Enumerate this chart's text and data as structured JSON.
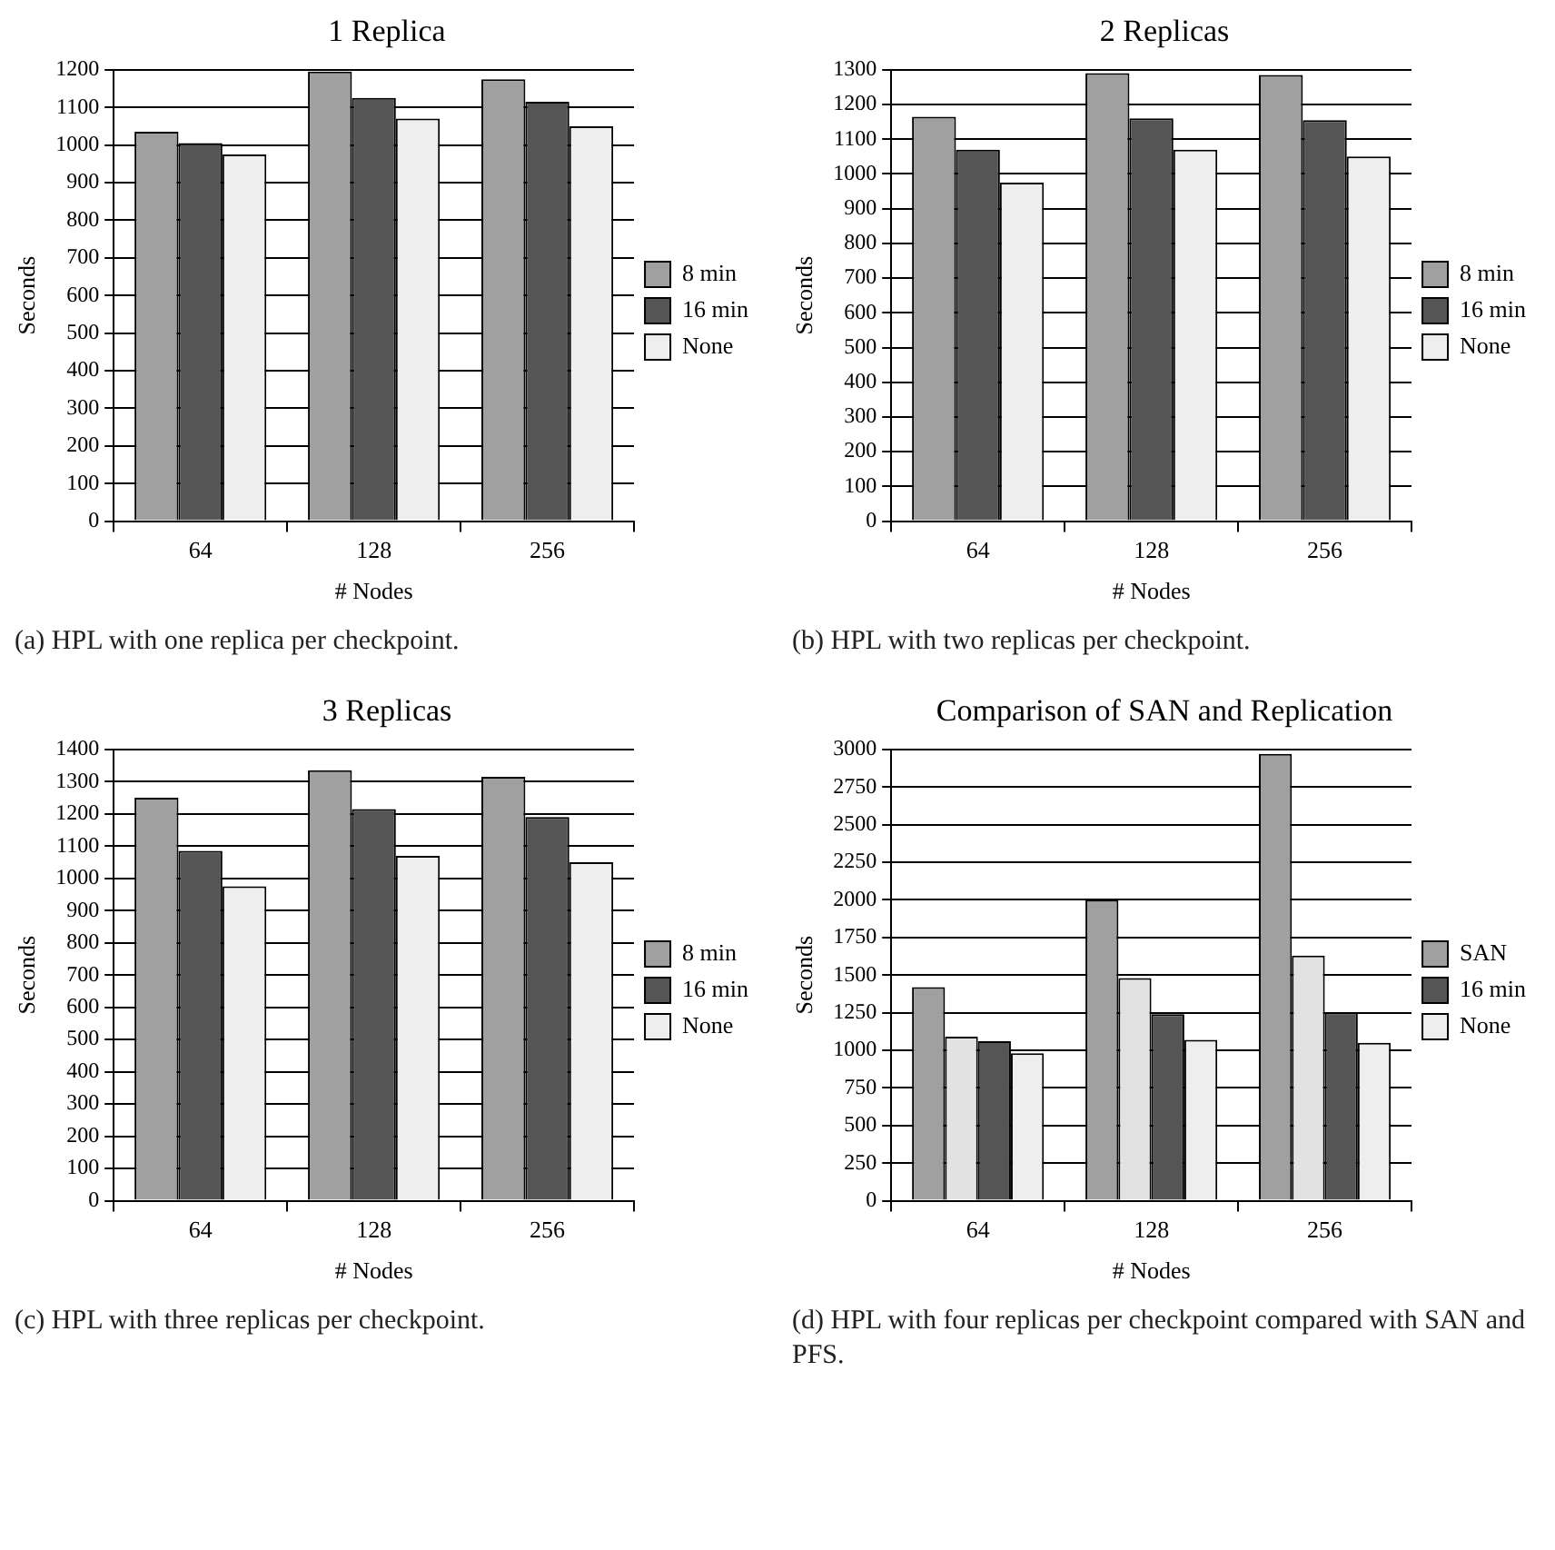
{
  "chart_data": [
    {
      "type": "bar",
      "title": "1 Replica",
      "xlabel": "# Nodes",
      "ylabel": "Seconds",
      "categories": [
        "64",
        "128",
        "256"
      ],
      "series": [
        {
          "name": "8 min",
          "color": "#a0a0a0",
          "values": [
            1035,
            1195,
            1175
          ]
        },
        {
          "name": "16 min",
          "color": "#555555",
          "values": [
            1005,
            1125,
            1115
          ]
        },
        {
          "name": "None",
          "color": "#eeeeee",
          "values": [
            975,
            1070,
            1050
          ]
        }
      ],
      "ylim": [
        0,
        1200
      ],
      "yticks": [
        0,
        100,
        200,
        300,
        400,
        500,
        600,
        700,
        800,
        900,
        1000,
        1100,
        1200
      ],
      "grid": "y",
      "legend": "right",
      "annotations": [
        "(a) HPL with one replica per checkpoint."
      ]
    },
    {
      "type": "bar",
      "title": "2 Replicas",
      "xlabel": "# Nodes",
      "ylabel": "Seconds",
      "categories": [
        "64",
        "128",
        "256"
      ],
      "series": [
        {
          "name": "8 min",
          "color": "#a0a0a0",
          "values": [
            1165,
            1290,
            1285
          ]
        },
        {
          "name": "16 min",
          "color": "#555555",
          "values": [
            1070,
            1160,
            1155
          ]
        },
        {
          "name": "None",
          "color": "#eeeeee",
          "values": [
            975,
            1070,
            1050
          ]
        }
      ],
      "ylim": [
        0,
        1300
      ],
      "yticks": [
        0,
        100,
        200,
        300,
        400,
        500,
        600,
        700,
        800,
        900,
        1000,
        1100,
        1200,
        1300
      ],
      "grid": "y",
      "legend": "right",
      "annotations": [
        "(b) HPL with two replicas per checkpoint."
      ]
    },
    {
      "type": "bar",
      "title": "3 Replicas",
      "xlabel": "# Nodes",
      "ylabel": "Seconds",
      "categories": [
        "64",
        "128",
        "256"
      ],
      "series": [
        {
          "name": "8 min",
          "color": "#a0a0a0",
          "values": [
            1250,
            1335,
            1315
          ]
        },
        {
          "name": "16 min",
          "color": "#555555",
          "values": [
            1085,
            1215,
            1190
          ]
        },
        {
          "name": "None",
          "color": "#eeeeee",
          "values": [
            975,
            1070,
            1050
          ]
        }
      ],
      "ylim": [
        0,
        1400
      ],
      "yticks": [
        0,
        100,
        200,
        300,
        400,
        500,
        600,
        700,
        800,
        900,
        1000,
        1100,
        1200,
        1300,
        1400
      ],
      "grid": "y",
      "legend": "right",
      "annotations": [
        "(c) HPL with three replicas per checkpoint."
      ]
    },
    {
      "type": "bar",
      "title": "Comparison of SAN and Replication",
      "xlabel": "# Nodes",
      "ylabel": "Seconds",
      "categories": [
        "64",
        "128",
        "256"
      ],
      "series": [
        {
          "name": "SAN",
          "color": "#a0a0a0",
          "values": [
            1420,
            2000,
            2970
          ]
        },
        {
          "color": "#e2e2e2",
          "values": [
            1090,
            1480,
            1630
          ]
        },
        {
          "name": "16 min",
          "color": "#555555",
          "values": [
            1060,
            1240,
            1250
          ]
        },
        {
          "name": "None",
          "color": "#eeeeee",
          "values": [
            980,
            1070,
            1050
          ]
        }
      ],
      "ylim": [
        0,
        3000
      ],
      "yticks": [
        0,
        250,
        500,
        750,
        1000,
        1250,
        1500,
        1750,
        2000,
        2250,
        2500,
        2750,
        3000
      ],
      "grid": "y",
      "legend": "right",
      "annotations": [
        "(d) HPL with four replicas per checkpoint compared with SAN and PFS."
      ]
    }
  ]
}
